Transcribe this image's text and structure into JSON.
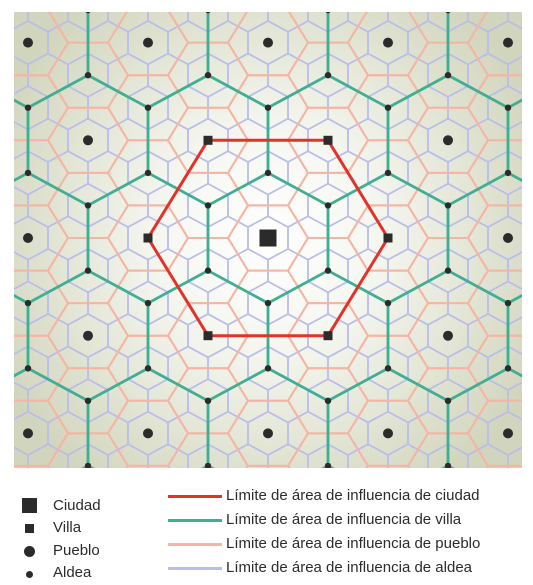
{
  "legend": {
    "settlements": [
      {
        "key": "ciudad",
        "label": "Ciudad",
        "symbol": "large-square"
      },
      {
        "key": "villa",
        "label": "Villa",
        "symbol": "small-square"
      },
      {
        "key": "pueblo",
        "label": "Pueblo",
        "symbol": "large-dot"
      },
      {
        "key": "aldea",
        "label": "Aldea",
        "symbol": "small-dot"
      }
    ],
    "boundaries": [
      {
        "key": "ciudad",
        "label": "Límite de área de influencia de ciudad",
        "color": "#e0342b"
      },
      {
        "key": "villa",
        "label": "Límite de área de influencia de villa",
        "color": "#3fae92"
      },
      {
        "key": "pueblo",
        "label": "Límite de área de influencia de pueblo",
        "color": "#f4b6a4"
      },
      {
        "key": "aldea",
        "label": "Límite de área de influencia de aldea",
        "color": "#b9bee8"
      }
    ]
  },
  "colors": {
    "background_center": "#ffffff",
    "background_edge": "#dadcc8",
    "settlement": "#2b2b2b"
  }
}
